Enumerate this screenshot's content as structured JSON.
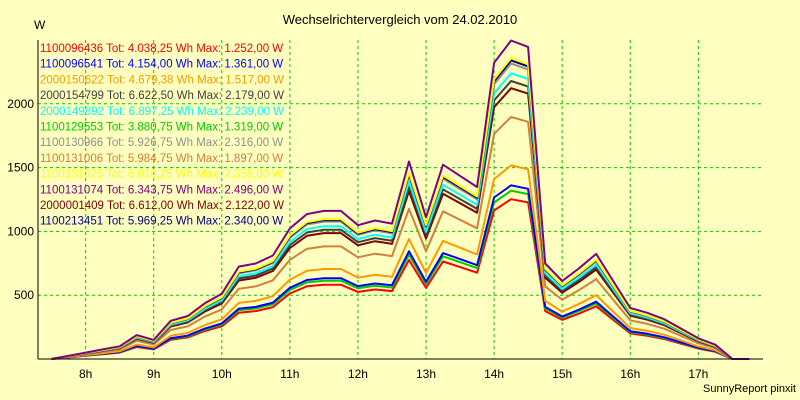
{
  "chart_data": {
    "type": "line",
    "title": "Wechselrichtervergleich vom 24.02.2010",
    "ylabel": "W",
    "xlabel": "",
    "ylim": [
      0,
      2500
    ],
    "xlim": [
      7.3,
      17.95
    ],
    "yticks": [
      500,
      1000,
      1500,
      2000
    ],
    "xticks": [
      8,
      9,
      10,
      11,
      12,
      13,
      14,
      15,
      16,
      17
    ],
    "xtick_labels": [
      "8h",
      "9h",
      "10h",
      "11h",
      "12h",
      "13h",
      "14h",
      "15h",
      "16h",
      "17h"
    ],
    "grid": true,
    "legend_position": "top-left",
    "footer": "SunnyReport pinxit",
    "x": [
      7.5,
      7.75,
      8.0,
      8.25,
      8.5,
      8.75,
      9.0,
      9.25,
      9.5,
      9.75,
      10.0,
      10.25,
      10.5,
      10.75,
      11.0,
      11.25,
      11.5,
      11.75,
      12.0,
      12.25,
      12.5,
      12.75,
      13.0,
      13.25,
      13.5,
      13.75,
      14.0,
      14.25,
      14.5,
      14.75,
      15.0,
      15.25,
      15.5,
      15.75,
      16.0,
      16.25,
      16.5,
      16.75,
      17.0,
      17.25,
      17.5,
      17.75
    ],
    "series": [
      {
        "name": "1100096436",
        "tot": "Tot: 4.038,25",
        "max": "Wh Max: 1.252,00 W",
        "color": "#ff0000",
        "peak": 1252
      },
      {
        "name": "1100096541",
        "tot": "Tot: 4.154,00",
        "max": "Wh Max: 1.361,00 W",
        "color": "#0000ff",
        "peak": 1361
      },
      {
        "name": "2000150622",
        "tot": "Tot: 4.679,38",
        "max": "Wh Max: 1.517,00 W",
        "color": "#ff9900",
        "peak": 1517
      },
      {
        "name": "2000154799",
        "tot": "Tot: 6.622,50",
        "max": "Wh Max: 2.179,00 W",
        "color": "#404040",
        "peak": 2179
      },
      {
        "name": "2000149892",
        "tot": "Tot: 6.897,25",
        "max": "Wh Max: 2.239,00 W",
        "color": "#00ffff",
        "peak": 2239
      },
      {
        "name": "1100129553",
        "tot": "Tot: 3.880,75",
        "max": "Wh Max: 1.319,00 W",
        "color": "#00cc00",
        "peak": 1319
      },
      {
        "name": "1100130966",
        "tot": "Tot: 5.926,75",
        "max": "Wh Max: 2.316,00 W",
        "color": "#909090",
        "peak": 2316
      },
      {
        "name": "1100131006",
        "tot": "Tot: 5.984,75",
        "max": "Wh Max: 1.897,00 W",
        "color": "#d08040",
        "peak": 1897
      },
      {
        "name": "1100131025",
        "tot": "Tot: 6.018,25",
        "max": "Wh Max: 2.358,00 W",
        "color": "#ffff00",
        "peak": 2358
      },
      {
        "name": "1100131074",
        "tot": "Tot: 6.343,75",
        "max": "Wh Max: 2.496,00 W",
        "color": "#800080",
        "peak": 2496
      },
      {
        "name": "2000001409",
        "tot": "Tot: 6.612,00",
        "max": "Wh Max: 2.122,00 W",
        "color": "#800000",
        "peak": 2122
      },
      {
        "name": "1100213451",
        "tot": "Tot: 5.969,25",
        "max": "Wh Max: 2.340,00 W",
        "color": "#000080",
        "peak": 2340
      }
    ],
    "profile": [
      0.0,
      0.01,
      0.02,
      0.03,
      0.04,
      0.075,
      0.06,
      0.12,
      0.135,
      0.175,
      0.205,
      0.29,
      0.3,
      0.325,
      0.41,
      0.455,
      0.465,
      0.465,
      0.42,
      0.435,
      0.425,
      0.62,
      0.445,
      0.61,
      0.575,
      0.54,
      0.93,
      1.0,
      0.98,
      0.3,
      0.245,
      0.285,
      0.33,
      0.245,
      0.16,
      0.145,
      0.125,
      0.095,
      0.065,
      0.045,
      0.0,
      0.0
    ]
  }
}
